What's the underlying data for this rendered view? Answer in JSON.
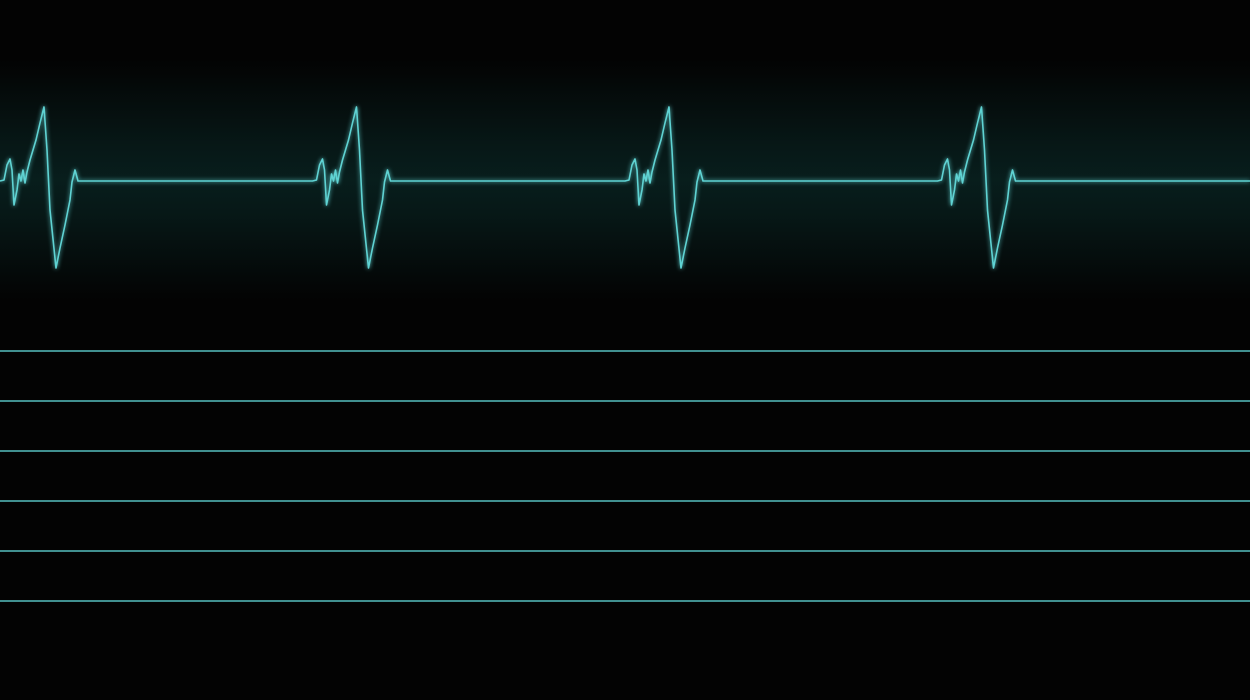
{
  "monitor": {
    "trace_color": "#5fd3d3",
    "glow_color": "#1fa3a3",
    "background_color": "#030303",
    "beat_count": 4,
    "flatline_count": 6
  }
}
